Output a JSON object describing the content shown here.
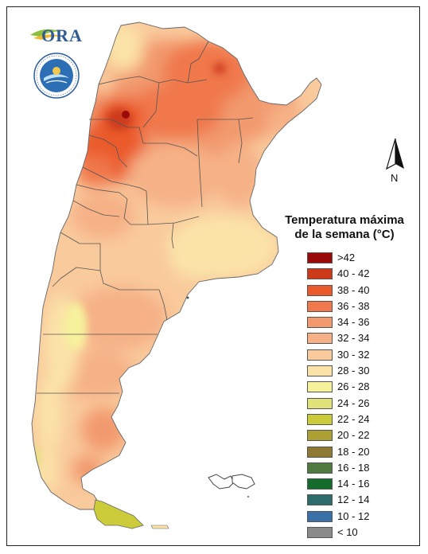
{
  "logo": {
    "text": "ORA",
    "icon_name": "ora-sun-logo-icon"
  },
  "seal": {
    "icon_name": "servicio-meteorologico-nacional-seal-icon",
    "text": "SERVICIO METEOROLOGICO NACIONAL · ARGENTINA"
  },
  "north_arrow": {
    "label": "N",
    "icon_name": "north-arrow-icon"
  },
  "legend": {
    "title_line1": "Temperatura máxima",
    "title_line2": "de la semana (°C)",
    "items": [
      {
        "label": ">42",
        "color": "#9b0a0a"
      },
      {
        "label": "40 - 42",
        "color": "#cc3a1a"
      },
      {
        "label": "38 - 40",
        "color": "#ea5a2c"
      },
      {
        "label": "36 - 38",
        "color": "#f0784c"
      },
      {
        "label": "34 - 36",
        "color": "#f29a6e"
      },
      {
        "label": "32 - 34",
        "color": "#f6b186"
      },
      {
        "label": "30 - 32",
        "color": "#f9ca9c"
      },
      {
        "label": "28 - 30",
        "color": "#fbe3a8"
      },
      {
        "label": "26 - 28",
        "color": "#f6f29c"
      },
      {
        "label": "24 - 26",
        "color": "#e2e27a"
      },
      {
        "label": "22 - 24",
        "color": "#cccc3a"
      },
      {
        "label": "20 - 22",
        "color": "#ada033"
      },
      {
        "label": "18 - 20",
        "color": "#8e7a34"
      },
      {
        "label": "16 - 18",
        "color": "#507a40"
      },
      {
        "label": "14 - 16",
        "color": "#136b2c"
      },
      {
        "label": "12 - 14",
        "color": "#2e6b6b"
      },
      {
        "label": "10 - 12",
        "color": "#3a70a8"
      },
      {
        "label": "< 10",
        "color": "#8a8a8a"
      }
    ]
  }
}
